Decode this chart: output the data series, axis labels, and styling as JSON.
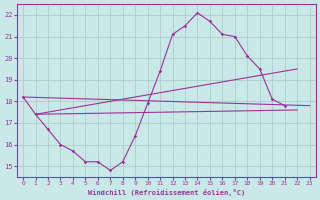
{
  "xlabel": "Windchill (Refroidissement éolien,°C)",
  "background_color": "#cbe8e8",
  "line_color": "#993399",
  "xlim": [
    -0.5,
    23.5
  ],
  "ylim": [
    14.5,
    22.5
  ],
  "xticks": [
    0,
    1,
    2,
    3,
    4,
    5,
    6,
    7,
    8,
    9,
    10,
    11,
    12,
    13,
    14,
    15,
    16,
    17,
    18,
    19,
    20,
    21,
    22,
    23
  ],
  "yticks": [
    15,
    16,
    17,
    18,
    19,
    20,
    21,
    22
  ],
  "wiggly": {
    "x": [
      0,
      1,
      2,
      3,
      4,
      5,
      6,
      7,
      8,
      9,
      10,
      11,
      12,
      13,
      14,
      15,
      16,
      17,
      18,
      19,
      20,
      21
    ],
    "y": [
      18.2,
      17.4,
      16.7,
      16.0,
      15.7,
      15.2,
      15.2,
      14.8,
      15.2,
      16.4,
      17.9,
      19.4,
      21.1,
      21.5,
      22.1,
      21.7,
      21.1,
      21.0,
      20.1,
      19.5,
      18.1,
      17.8
    ]
  },
  "line1": {
    "x": [
      0,
      23
    ],
    "y": [
      18.2,
      17.8
    ]
  },
  "line2": {
    "x": [
      1,
      22
    ],
    "y": [
      17.4,
      19.5
    ]
  },
  "line3": {
    "x": [
      1,
      22
    ],
    "y": [
      17.4,
      17.6
    ]
  }
}
